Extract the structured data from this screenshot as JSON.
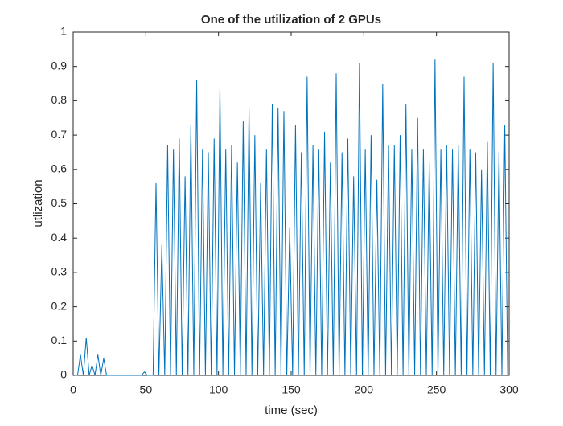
{
  "chart_data": {
    "type": "line",
    "title": "One of the utilization of 2 GPUs",
    "x_label": "time (sec)",
    "y_label": "utlization",
    "x": [
      1,
      3,
      5,
      7,
      9,
      11,
      13,
      15,
      17,
      19,
      21,
      23,
      25,
      27,
      29,
      31,
      33,
      35,
      37,
      39,
      41,
      43,
      45,
      47,
      49,
      51,
      53,
      55,
      57,
      59,
      61,
      63,
      65,
      67,
      69,
      71,
      73,
      75,
      77,
      79,
      81,
      83,
      85,
      87,
      89,
      91,
      93,
      95,
      97,
      99,
      101,
      103,
      105,
      107,
      109,
      111,
      113,
      115,
      117,
      119,
      121,
      123,
      125,
      127,
      129,
      131,
      133,
      135,
      137,
      139,
      141,
      143,
      145,
      147,
      149,
      151,
      153,
      155,
      157,
      159,
      161,
      163,
      165,
      167,
      169,
      171,
      173,
      175,
      177,
      179,
      181,
      183,
      185,
      187,
      189,
      191,
      193,
      195,
      197,
      199,
      201,
      203,
      205,
      207,
      209,
      211,
      213,
      215,
      217,
      219,
      221,
      223,
      225,
      227,
      229,
      231,
      233,
      235,
      237,
      239,
      241,
      243,
      245,
      247,
      249,
      251,
      253,
      255,
      257,
      259,
      261,
      263,
      265,
      267,
      269,
      271,
      273,
      275,
      277,
      279,
      281,
      283,
      285,
      287,
      289,
      291,
      293,
      295,
      297,
      299
    ],
    "values": [
      0,
      0,
      0.06,
      0,
      0.11,
      0,
      0.03,
      0,
      0.06,
      0,
      0.05,
      0,
      0,
      0,
      0,
      0,
      0,
      0,
      0,
      0,
      0,
      0,
      0,
      0,
      0.01,
      0,
      0,
      0,
      0.56,
      0,
      0.38,
      0,
      0.67,
      0,
      0.66,
      0,
      0.69,
      0,
      0.58,
      0,
      0.73,
      0,
      0.86,
      0,
      0.66,
      0,
      0.65,
      0,
      0.69,
      0,
      0.84,
      0,
      0.66,
      0,
      0.67,
      0,
      0.62,
      0,
      0.74,
      0,
      0.78,
      0,
      0.7,
      0,
      0.56,
      0,
      0.66,
      0,
      0.79,
      0,
      0.78,
      0,
      0.77,
      0,
      0.43,
      0,
      0.73,
      0,
      0.65,
      0,
      0.87,
      0,
      0.67,
      0,
      0.66,
      0,
      0.71,
      0,
      0.62,
      0,
      0.88,
      0,
      0.65,
      0,
      0.69,
      0,
      0.58,
      0,
      0.91,
      0,
      0.66,
      0,
      0.7,
      0,
      0.57,
      0,
      0.85,
      0,
      0.67,
      0,
      0.67,
      0,
      0.7,
      0,
      0.79,
      0,
      0.66,
      0,
      0.75,
      0,
      0.66,
      0,
      0.62,
      0,
      0.92,
      0,
      0.66,
      0,
      0.67,
      0,
      0.66,
      0,
      0.67,
      0,
      0.87,
      0,
      0.66,
      0,
      0.65,
      0,
      0.6,
      0,
      0.68,
      0,
      0.91,
      0,
      0.65,
      0,
      0.73,
      0
    ],
    "color": "#0072bd",
    "xlim": [
      0,
      300
    ],
    "xticks": [
      0,
      50,
      100,
      150,
      200,
      250,
      300
    ],
    "ylim": [
      0,
      1
    ],
    "yticks": [
      0,
      0.1,
      0.2,
      0.3,
      0.4,
      0.5,
      0.6,
      0.7,
      0.8,
      0.9,
      1
    ]
  }
}
